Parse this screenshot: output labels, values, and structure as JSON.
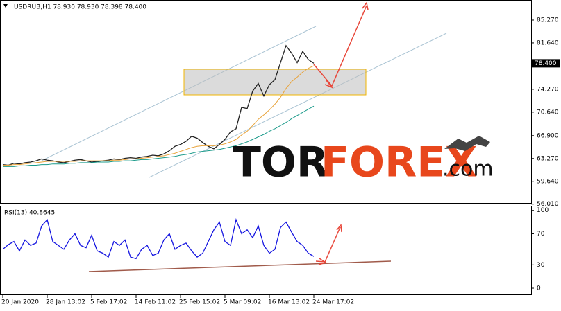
{
  "chart_data": [
    {
      "type": "line",
      "title": "USDRUB,H1  78.930 78.930 78.398 78.400",
      "categories": [
        "20 Jan 2020",
        null,
        null,
        null,
        null,
        null,
        null,
        null,
        "28 Jan 13:02",
        null,
        null,
        null,
        null,
        null,
        null,
        null,
        "5 Feb 17:02",
        null,
        null,
        null,
        null,
        null,
        null,
        null,
        "14 Feb 11:02",
        null,
        null,
        null,
        null,
        null,
        null,
        null,
        "25 Feb 15:02",
        null,
        null,
        null,
        null,
        null,
        null,
        null,
        "5 Mar 09:02",
        null,
        null,
        null,
        null,
        null,
        null,
        null,
        "16 Mar 13:02",
        null,
        null,
        null,
        null,
        null,
        null,
        null,
        "24 Mar 17:02"
      ],
      "series": [
        {
          "color": "#222222",
          "values": [
            62.3,
            62.2,
            62.5,
            62.4,
            62.6,
            62.7,
            62.9,
            63.2,
            63.0,
            62.9,
            62.7,
            62.6,
            62.8,
            63.0,
            63.1,
            62.9,
            62.7,
            62.8,
            62.9,
            63.0,
            63.2,
            63.1,
            63.3,
            63.4,
            63.3,
            63.5,
            63.6,
            63.8,
            63.7,
            64.0,
            64.5,
            65.2,
            65.5,
            66.0,
            66.8,
            66.5,
            65.8,
            65.2,
            64.8,
            65.5,
            66.3,
            67.5,
            68.0,
            71.4,
            71.2,
            74.0,
            75.2,
            73.2,
            75.0,
            75.8,
            78.5,
            81.2,
            80.0,
            78.5,
            80.3,
            79.0,
            78.4
          ]
        },
        {
          "color": "#e8a33a",
          "values": [
            62.2,
            62.2,
            62.3,
            62.3,
            62.4,
            62.5,
            62.6,
            62.7,
            62.8,
            62.8,
            62.8,
            62.8,
            62.8,
            62.8,
            62.9,
            62.9,
            62.9,
            62.9,
            62.9,
            62.9,
            63.0,
            63.0,
            63.1,
            63.2,
            63.2,
            63.3,
            63.4,
            63.5,
            63.6,
            63.7,
            63.9,
            64.1,
            64.4,
            64.7,
            65.0,
            65.2,
            65.3,
            65.3,
            65.3,
            65.4,
            65.6,
            65.9,
            66.3,
            67.0,
            67.6,
            68.5,
            69.5,
            70.2,
            71.0,
            71.9,
            73.0,
            74.4,
            75.5,
            76.2,
            77.0,
            77.6,
            78.0
          ]
        },
        {
          "color": "#1a9a8a",
          "values": [
            62.0,
            62.0,
            62.0,
            62.1,
            62.1,
            62.2,
            62.2,
            62.3,
            62.3,
            62.4,
            62.4,
            62.4,
            62.5,
            62.5,
            62.6,
            62.6,
            62.6,
            62.7,
            62.7,
            62.7,
            62.8,
            62.8,
            62.9,
            62.9,
            63.0,
            63.1,
            63.1,
            63.2,
            63.3,
            63.4,
            63.5,
            63.6,
            63.8,
            63.9,
            64.1,
            64.3,
            64.4,
            64.5,
            64.6,
            64.7,
            64.9,
            65.1,
            65.3,
            65.6,
            65.9,
            66.3,
            66.7,
            67.1,
            67.6,
            68.0,
            68.5,
            69.0,
            69.6,
            70.1,
            70.6,
            71.1,
            71.6
          ]
        }
      ],
      "ylim": [
        56.2,
        88.46
      ],
      "yticks": [
        {
          "value": 85.27,
          "label": "85.270"
        },
        {
          "value": 81.64,
          "label": "81.640"
        },
        {
          "value": 74.27,
          "label": "74.270"
        },
        {
          "value": 70.64,
          "label": "70.640"
        },
        {
          "value": 66.9,
          "label": "66.900"
        },
        {
          "value": 63.27,
          "label": "63.270"
        },
        {
          "value": 59.64,
          "label": "59.640"
        },
        {
          "value": 56.01,
          "label": "56.010"
        }
      ],
      "last_price": {
        "value": 78.4,
        "label": "78.400"
      },
      "logo": [
        "TOR",
        "FOREX",
        ".com"
      ]
    },
    {
      "type": "line",
      "title": "RSI(13) 40.8645",
      "series": [
        {
          "color": "#1414e0",
          "values": [
            50,
            56,
            60,
            48,
            62,
            55,
            58,
            80,
            88,
            60,
            55,
            50,
            62,
            70,
            55,
            52,
            68,
            48,
            45,
            40,
            60,
            55,
            62,
            40,
            38,
            50,
            55,
            42,
            45,
            62,
            70,
            50,
            55,
            58,
            48,
            40,
            45,
            60,
            75,
            85,
            60,
            55,
            88,
            70,
            75,
            65,
            80,
            55,
            45,
            50,
            78,
            85,
            72,
            60,
            55,
            45,
            40.8645
          ]
        }
      ],
      "ylim": [
        -8,
        106
      ],
      "yticks": [
        100,
        70,
        30,
        0
      ]
    }
  ]
}
